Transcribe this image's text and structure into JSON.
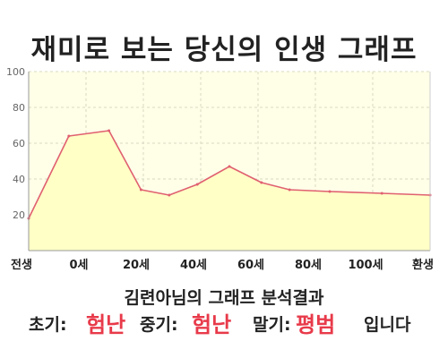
{
  "title": "재미로 보는 당신의 인생 그래프",
  "chart_data": {
    "type": "area",
    "x": [
      0,
      10,
      20,
      28,
      35,
      42,
      50,
      58,
      65,
      75,
      88,
      100
    ],
    "series": [
      {
        "values": [
          18,
          64,
          67,
          34,
          31,
          37,
          47,
          38,
          34,
          33,
          32,
          31
        ]
      }
    ],
    "xlim": [
      0,
      100
    ],
    "ylim": [
      0,
      100
    ],
    "yticks": [
      20,
      40,
      60,
      80,
      100
    ],
    "xtick_labels": [
      "전생",
      "0세",
      "20세",
      "40세",
      "60세",
      "80세",
      "100세",
      "환생"
    ],
    "grid": true,
    "colors": {
      "line": "#e06070",
      "fill": "#ffffc6",
      "plot_bg": "#ffffe8",
      "grid": "#d8d8c0"
    }
  },
  "result": {
    "heading": "김련아님의 그래프 분석결과",
    "early_label": "초기:",
    "early_value": "험난",
    "middle_label": "중기:",
    "middle_value": "험난",
    "late_label": "말기:",
    "late_value": "평범",
    "suffix": "입니다"
  }
}
